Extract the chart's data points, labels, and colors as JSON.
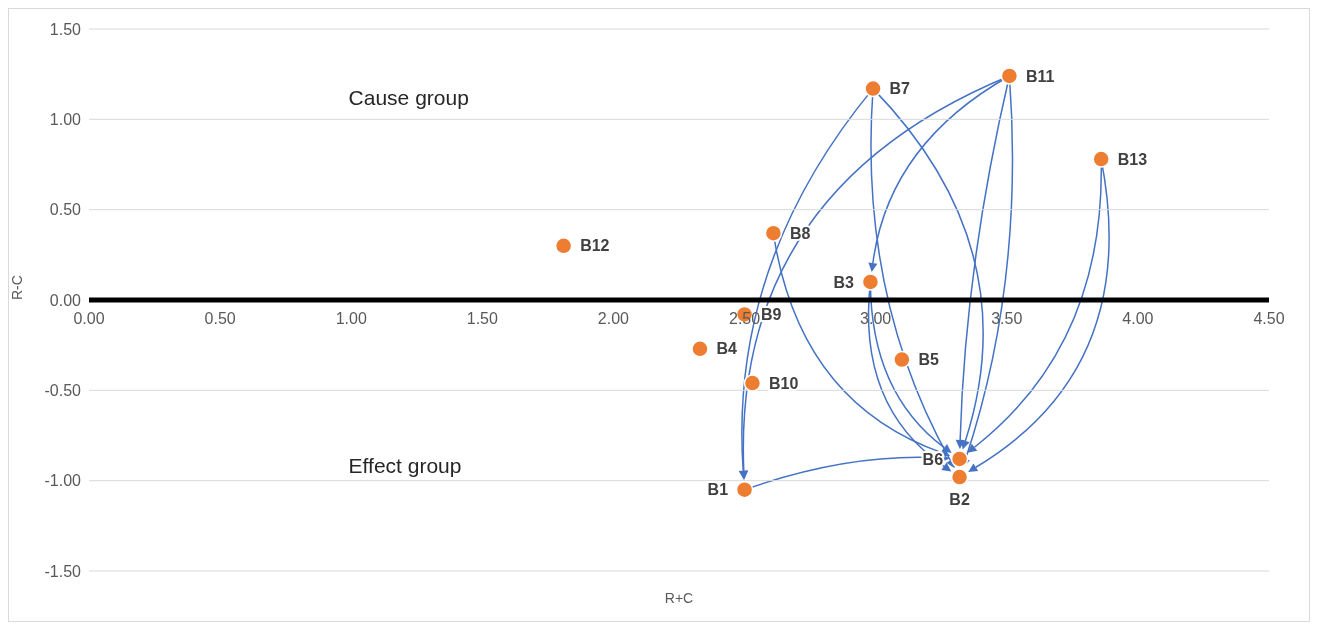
{
  "chart_data": {
    "type": "scatter",
    "xlabel": "R+C",
    "ylabel": "R-C",
    "xlim": [
      0,
      4.5
    ],
    "xticks": [
      {
        "value": 0,
        "label": "0.00"
      },
      {
        "value": 0.5,
        "label": "0.50"
      },
      {
        "value": 1,
        "label": "1.00"
      },
      {
        "value": 1.5,
        "label": "1.50"
      },
      {
        "value": 2,
        "label": "2.00"
      },
      {
        "value": 2.5,
        "label": "2.50"
      },
      {
        "value": 3,
        "label": "3.00"
      },
      {
        "value": 3.5,
        "label": "3.50"
      },
      {
        "value": 4,
        "label": "4.00"
      },
      {
        "value": 4.5,
        "label": "4.50"
      }
    ],
    "ylim": [
      -1.5,
      1.5
    ],
    "yticks": [
      {
        "value": -1.5,
        "label": "-1.50"
      },
      {
        "value": -1,
        "label": "-1.00"
      },
      {
        "value": -0.5,
        "label": "-0.50"
      },
      {
        "value": 0,
        "label": "0.00"
      },
      {
        "value": 0.5,
        "label": "0.50"
      },
      {
        "value": 1,
        "label": "1.00"
      },
      {
        "value": 1.5,
        "label": "1.50"
      }
    ],
    "grid": "y",
    "legend": false,
    "marker": "circle",
    "annotations": [
      "Cause group",
      "Effect group"
    ],
    "series": [
      {
        "name": "B1",
        "color": "#ed7d31",
        "x": [
          2.5
        ],
        "values": [
          -1.05
        ]
      },
      {
        "name": "B2",
        "color": "#ed7d31",
        "x": [
          3.32
        ],
        "values": [
          -0.98
        ]
      },
      {
        "name": "B3",
        "color": "#ed7d31",
        "x": [
          2.98
        ],
        "values": [
          0.1
        ]
      },
      {
        "name": "B4",
        "color": "#ed7d31",
        "x": [
          2.33
        ],
        "values": [
          -0.27
        ]
      },
      {
        "name": "B5",
        "color": "#ed7d31",
        "x": [
          3.1
        ],
        "values": [
          -0.33
        ]
      },
      {
        "name": "B6",
        "color": "#ed7d31",
        "x": [
          3.32
        ],
        "values": [
          -0.88
        ]
      },
      {
        "name": "B7",
        "color": "#ed7d31",
        "x": [
          2.99
        ],
        "values": [
          1.17
        ]
      },
      {
        "name": "B8",
        "color": "#ed7d31",
        "x": [
          2.61
        ],
        "values": [
          0.37
        ]
      },
      {
        "name": "B9",
        "color": "#ed7d31",
        "x": [
          2.5
        ],
        "values": [
          -0.08
        ]
      },
      {
        "name": "B10",
        "color": "#ed7d31",
        "x": [
          2.53
        ],
        "values": [
          -0.46
        ]
      },
      {
        "name": "B11",
        "color": "#ed7d31",
        "x": [
          3.51
        ],
        "values": [
          1.24
        ]
      },
      {
        "name": "B12",
        "color": "#ed7d31",
        "x": [
          1.81
        ],
        "values": [
          0.3
        ]
      },
      {
        "name": "B13",
        "color": "#ed7d31",
        "x": [
          3.86
        ],
        "values": [
          0.78
        ]
      }
    ]
  }
}
